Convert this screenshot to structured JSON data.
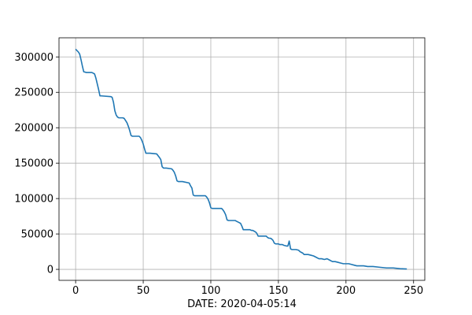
{
  "chart_data": {
    "type": "line",
    "title": "",
    "xlabel": "DATE: 2020-04-05:14",
    "ylabel": "",
    "xlim": [
      -12.3,
      258.3
    ],
    "ylim": [
      -15500,
      327000
    ],
    "grid": true,
    "xticks": [
      0,
      50,
      100,
      150,
      200,
      250
    ],
    "yticks": [
      0,
      50000,
      100000,
      150000,
      200000,
      250000,
      300000
    ],
    "xtick_labels": [
      "0",
      "50",
      "100",
      "150",
      "200",
      "250"
    ],
    "ytick_labels": [
      "0",
      "50000",
      "100000",
      "150000",
      "200000",
      "250000",
      "300000"
    ],
    "series": [
      {
        "color": "#1f77b4",
        "x": [
          0,
          2,
          3,
          4,
          5,
          6,
          8,
          12,
          13,
          14,
          15,
          16,
          17,
          18,
          19,
          26,
          27,
          28,
          29,
          30,
          31,
          32,
          35,
          36,
          37,
          38,
          39,
          40,
          41,
          42,
          43,
          47,
          48,
          49,
          50,
          51,
          52,
          53,
          54,
          55,
          60,
          62,
          63,
          64,
          65,
          66,
          67,
          71,
          72,
          73,
          74,
          75,
          76,
          77,
          78,
          79,
          84,
          85,
          86,
          87,
          88,
          89,
          95,
          96,
          97,
          98,
          99,
          100,
          101,
          106,
          108,
          109,
          110,
          111,
          112,
          113,
          118,
          119,
          120,
          121,
          122,
          123,
          124,
          129,
          130,
          131,
          132,
          133,
          134,
          135,
          139,
          140,
          141,
          142,
          143,
          144,
          145,
          146,
          147,
          148,
          149,
          150,
          151,
          153,
          154,
          156,
          157,
          158,
          159,
          160,
          161,
          162,
          163,
          165,
          166,
          167,
          168,
          169,
          170,
          172,
          174,
          176,
          178,
          180,
          182,
          184,
          186,
          188,
          190,
          192,
          194,
          196,
          198,
          200,
          202,
          204,
          206,
          208,
          210,
          213,
          216,
          220,
          225,
          230,
          235,
          240,
          245
        ],
        "y": [
          311000,
          307000,
          304000,
          296000,
          287000,
          279000,
          278000,
          278000,
          277000,
          276000,
          270000,
          262000,
          254000,
          245000,
          245000,
          244000,
          243000,
          236000,
          224000,
          218000,
          215000,
          214000,
          214000,
          213000,
          210000,
          207000,
          202000,
          196000,
          189000,
          188000,
          188000,
          188000,
          186000,
          182000,
          177000,
          170000,
          164000,
          164000,
          164000,
          164000,
          163000,
          158000,
          155000,
          145000,
          143000,
          143000,
          143000,
          142000,
          140000,
          137000,
          132000,
          125000,
          124000,
          124000,
          124000,
          124000,
          122000,
          118000,
          115000,
          105000,
          104000,
          104000,
          104000,
          104000,
          102000,
          99000,
          94000,
          87000,
          86000,
          86000,
          86000,
          84000,
          81000,
          77000,
          70000,
          69000,
          69000,
          68000,
          67000,
          66000,
          65000,
          61000,
          56000,
          56000,
          55000,
          55000,
          54000,
          53000,
          51000,
          47000,
          47000,
          47000,
          47000,
          45000,
          44000,
          44000,
          43000,
          41000,
          37000,
          36000,
          36000,
          36000,
          35000,
          35000,
          34000,
          33000,
          33000,
          40000,
          29000,
          28000,
          28000,
          28000,
          28000,
          27000,
          25000,
          24000,
          23000,
          21000,
          21000,
          21000,
          20000,
          19000,
          17000,
          15000,
          15000,
          14000,
          15000,
          13000,
          11000,
          11000,
          10000,
          9000,
          8000,
          8000,
          8000,
          7000,
          6000,
          5000,
          5000,
          5000,
          4000,
          4000,
          3000,
          2000,
          2000,
          1000,
          500
        ]
      }
    ]
  }
}
